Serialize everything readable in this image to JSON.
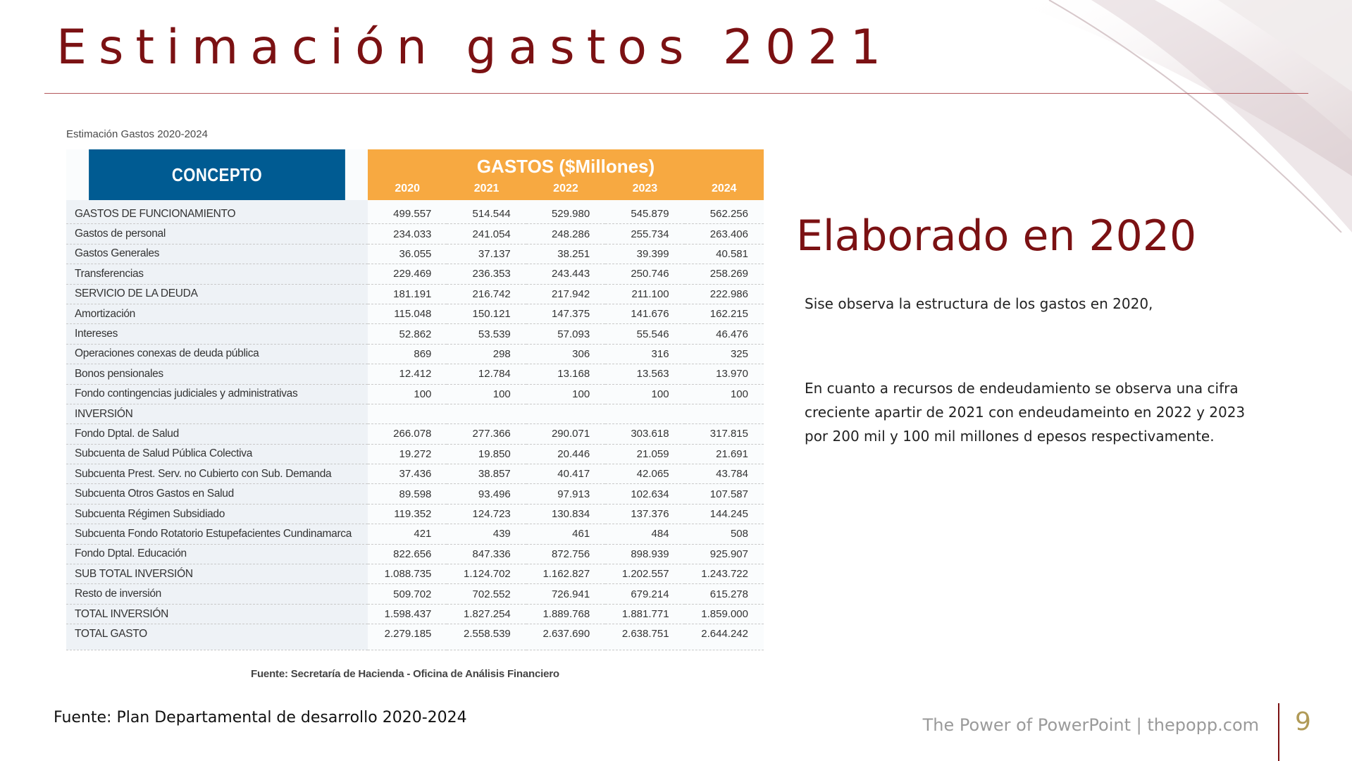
{
  "slide": {
    "title": "Estimación gastos 2021",
    "page_number": "9",
    "footer_credit": "The Power of PowerPoint | thepopp.com",
    "source_note": "Fuente: Plan Departamental de desarrollo 2020-2024"
  },
  "table": {
    "caption": "Estimación Gastos 2020-2024",
    "concept_header": "CONCEPTO",
    "gastos_header": "GASTOS ($Millones)",
    "years": [
      "2020",
      "2021",
      "2022",
      "2023",
      "2024"
    ],
    "rows": [
      {
        "concept": "GASTOS DE FUNCIONAMIENTO",
        "values": [
          "499.557",
          "514.544",
          "529.980",
          "545.879",
          "562.256"
        ]
      },
      {
        "concept": "Gastos de personal",
        "values": [
          "234.033",
          "241.054",
          "248.286",
          "255.734",
          "263.406"
        ]
      },
      {
        "concept": "Gastos Generales",
        "values": [
          "36.055",
          "37.137",
          "38.251",
          "39.399",
          "40.581"
        ]
      },
      {
        "concept": "Transferencias",
        "values": [
          "229.469",
          "236.353",
          "243.443",
          "250.746",
          "258.269"
        ]
      },
      {
        "concept": "SERVICIO DE LA DEUDA",
        "values": [
          "181.191",
          "216.742",
          "217.942",
          "211.100",
          "222.986"
        ]
      },
      {
        "concept": "Amortización",
        "values": [
          "115.048",
          "150.121",
          "147.375",
          "141.676",
          "162.215"
        ]
      },
      {
        "concept": "Intereses",
        "values": [
          "52.862",
          "53.539",
          "57.093",
          "55.546",
          "46.476"
        ]
      },
      {
        "concept": "Operaciones conexas de deuda pública",
        "values": [
          "869",
          "298",
          "306",
          "316",
          "325"
        ]
      },
      {
        "concept": "Bonos pensionales",
        "values": [
          "12.412",
          "12.784",
          "13.168",
          "13.563",
          "13.970"
        ]
      },
      {
        "concept": "Fondo contingencias judiciales y administrativas",
        "values": [
          "100",
          "100",
          "100",
          "100",
          "100"
        ]
      },
      {
        "concept": "INVERSIÓN",
        "values": [
          "",
          "",
          "",
          "",
          ""
        ]
      },
      {
        "concept": "Fondo Dptal. de Salud",
        "values": [
          "266.078",
          "277.366",
          "290.071",
          "303.618",
          "317.815"
        ]
      },
      {
        "concept": "Subcuenta de Salud Pública Colectiva",
        "values": [
          "19.272",
          "19.850",
          "20.446",
          "21.059",
          "21.691"
        ]
      },
      {
        "concept": "Subcuenta Prest. Serv. no Cubierto con Sub. Demanda",
        "values": [
          "37.436",
          "38.857",
          "40.417",
          "42.065",
          "43.784"
        ]
      },
      {
        "concept": "Subcuenta Otros Gastos en Salud",
        "values": [
          "89.598",
          "93.496",
          "97.913",
          "102.634",
          "107.587"
        ]
      },
      {
        "concept": "Subcuenta Régimen Subsidiado",
        "values": [
          "119.352",
          "124.723",
          "130.834",
          "137.376",
          "144.245"
        ]
      },
      {
        "concept": "Subcuenta Fondo Rotatorio Estupefacientes Cundinamarca",
        "values": [
          "421",
          "439",
          "461",
          "484",
          "508"
        ]
      },
      {
        "concept": "Fondo Dptal. Educación",
        "values": [
          "822.656",
          "847.336",
          "872.756",
          "898.939",
          "925.907"
        ]
      },
      {
        "concept": "SUB TOTAL INVERSIÓN",
        "values": [
          "1.088.735",
          "1.124.702",
          "1.162.827",
          "1.202.557",
          "1.243.722"
        ]
      },
      {
        "concept": "Resto de inversión",
        "values": [
          "509.702",
          "702.552",
          "726.941",
          "679.214",
          "615.278"
        ]
      },
      {
        "concept": "TOTAL INVERSIÓN",
        "values": [
          "1.598.437",
          "1.827.254",
          "1.889.768",
          "1.881.771",
          "1.859.000"
        ]
      },
      {
        "concept": "TOTAL GASTO",
        "values": [
          "2.279.185",
          "2.558.539",
          "2.637.690",
          "2.638.751",
          "2.644.242"
        ]
      }
    ],
    "source": "Fuente: Secretaría de Hacienda - Oficina de Análisis Financiero"
  },
  "side_panel": {
    "title": "Elaborado en 2020",
    "note_1": "Sise observa la estructura de los gastos en 2020,",
    "note_2": "En cuanto a recursos de endeudamiento se observa una cifra creciente apartir de 2021 con endeudameinto en 2022 y 2023  por 200 mil y 100 mil millones d epesos respectivamente."
  },
  "colors": {
    "title": "#7b1113",
    "concept_header_bg": "#005b92",
    "gastos_header_bg": "#f7a941",
    "page_number": "#b09a57"
  }
}
